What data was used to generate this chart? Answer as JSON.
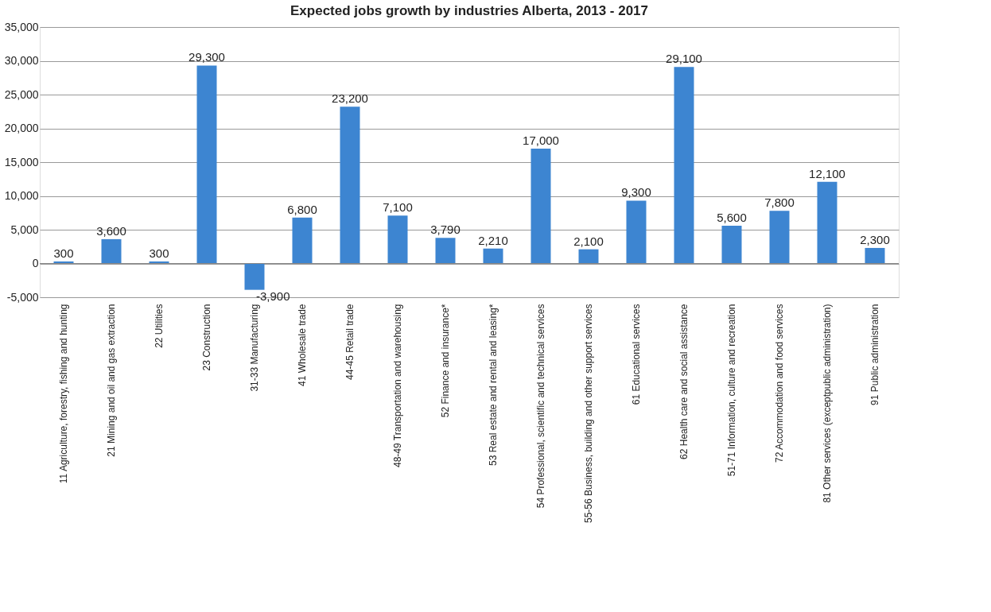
{
  "chart_data": {
    "type": "bar",
    "title": "Expected jobs growth by industries Alberta, 2013 - 2017",
    "categories": [
      "11 Agriculture, forestry, fishing and hunting",
      "21 Mining and oil and gas extraction",
      "22 Utilities",
      "23 Construction",
      "31-33 Manufacturing",
      "41 Wholesale trade",
      "44-45 Retail trade",
      "48-49 Transportation and warehousing",
      "52 Finance and insurance*",
      "53 Real estate and rental and leasing*",
      "54 Professional, scientific and technical services",
      "55-56 Business, building and other support services",
      "61 Educational services",
      "62 Health care and social assistance",
      "51-71 Information, culture and recreation",
      "72 Accommodation and food services",
      "81 Other services (exceptpublic administration)",
      "91 Public administration"
    ],
    "values": [
      300,
      3600,
      300,
      29300,
      -3900,
      6800,
      23200,
      7100,
      3790,
      2210,
      17000,
      2100,
      9300,
      29100,
      5600,
      7800,
      12100,
      2300
    ],
    "color": "#3d85d1",
    "value_labels": [
      "300",
      "3,600",
      "300",
      "29,300",
      "-3,900",
      "6,800",
      "23,200",
      "7,100",
      "3,790",
      "2,210",
      "17,000",
      "2,100",
      "9,300",
      "29,100",
      "5,600",
      "7,800",
      "12,100",
      "2,300"
    ],
    "ylim": [
      -5000,
      35000
    ],
    "yticks": [
      {
        "value": -5000,
        "label": "-5,000"
      },
      0,
      {
        "value": 5000,
        "label": "5,000"
      },
      {
        "value": 10000,
        "label": "10,000"
      },
      {
        "value": 15000,
        "label": "15,000"
      },
      {
        "value": 20000,
        "label": "20,000"
      },
      {
        "value": 25000,
        "label": "25,000"
      },
      {
        "value": 30000,
        "label": "30,000"
      },
      {
        "value": 35000,
        "label": "35,000"
      }
    ],
    "grid": "y"
  }
}
